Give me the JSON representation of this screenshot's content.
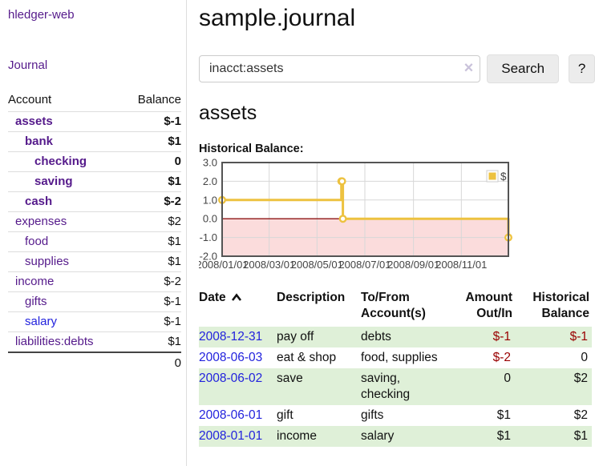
{
  "app": {
    "title": "hledger-web"
  },
  "sidebar": {
    "journal_link": "Journal",
    "table": {
      "headers": {
        "account": "Account",
        "balance": "Balance"
      },
      "rows": [
        {
          "account": "assets",
          "balance": "$-1",
          "indent": 1,
          "bold": true,
          "balance_style": "negative"
        },
        {
          "account": "bank",
          "balance": "$1",
          "indent": 2,
          "bold": true,
          "balance_style": "normal"
        },
        {
          "account": "checking",
          "balance": "0",
          "indent": 3,
          "bold": true,
          "balance_style": "normal"
        },
        {
          "account": "saving",
          "balance": "$1",
          "indent": 3,
          "bold": true,
          "balance_style": "normal"
        },
        {
          "account": "cash",
          "balance": "$-2",
          "indent": 2,
          "bold": true,
          "balance_style": "negative"
        },
        {
          "account": "expenses",
          "balance": "$2",
          "indent": 1,
          "bold": false,
          "balance_style": "normal"
        },
        {
          "account": "food",
          "balance": "$1",
          "indent": 2,
          "bold": false,
          "balance_style": "normal"
        },
        {
          "account": "supplies",
          "balance": "$1",
          "indent": 2,
          "bold": false,
          "balance_style": "normal"
        },
        {
          "account": "income",
          "balance": "$-2",
          "indent": 1,
          "bold": false,
          "balance_style": "muted-negative"
        },
        {
          "account": "gifts",
          "balance": "$-1",
          "indent": 2,
          "bold": false,
          "balance_style": "muted-negative"
        },
        {
          "account": "salary",
          "balance": "$-1",
          "indent": 2,
          "bold": false,
          "balance_style": "muted-negative",
          "link_style": "blue"
        },
        {
          "account": "liabilities:debts",
          "balance": "$1",
          "indent": 1,
          "bold": false,
          "balance_style": "normal"
        }
      ],
      "total": "0"
    }
  },
  "main": {
    "title": "sample.journal",
    "search": {
      "value": "inacct:assets",
      "clear_icon": "×",
      "button_label": "Search",
      "help_label": "?"
    },
    "account_heading": "assets"
  },
  "chart_data": {
    "type": "line",
    "title": "Historical Balance:",
    "step": true,
    "series": [
      {
        "name": "$",
        "color": "#EDC240",
        "points": [
          {
            "date": "2008-01-01",
            "value": 1
          },
          {
            "date": "2008-06-01",
            "value": 2
          },
          {
            "date": "2008-06-02",
            "value": 2
          },
          {
            "date": "2008-06-03",
            "value": 0
          },
          {
            "date": "2008-12-31",
            "value": -1
          }
        ]
      }
    ],
    "x_range": [
      "2008-01-01",
      "2008-12-31"
    ],
    "x_ticks": [
      {
        "date": "2008-01-01",
        "label": "2008/01/01"
      },
      {
        "date": "2008-03-01",
        "label": "2008/03/01"
      },
      {
        "date": "2008-05-01",
        "label": "2008/05/01"
      },
      {
        "date": "2008-07-01",
        "label": "2008/07/01"
      },
      {
        "date": "2008-09-01",
        "label": "2008/09/01"
      },
      {
        "date": "2008-11-01",
        "label": "2008/11/01"
      }
    ],
    "y_ticks": [
      "3.0",
      "2.0",
      "1.0",
      "0.0",
      "-1.0",
      "-2.0"
    ],
    "ylim": [
      -2,
      3
    ],
    "grid": true,
    "legend": {
      "label": "$",
      "position": "top-right"
    },
    "colors": {
      "negative_region": "#fbdcdc",
      "zero_line": "#8e1414",
      "grid": "#d7d7d7",
      "border": "#545454",
      "tick_text": "#444444"
    }
  },
  "register": {
    "headers": [
      {
        "line1": "Date",
        "line2": "",
        "align": "left",
        "sort": "asc"
      },
      {
        "line1": "Description",
        "line2": "",
        "align": "left"
      },
      {
        "line1": "To/From",
        "line2": "Account(s)",
        "align": "left"
      },
      {
        "line1": "Amount",
        "line2": "Out/In",
        "align": "right"
      },
      {
        "line1": "Historical",
        "line2": "Balance",
        "align": "right"
      }
    ],
    "rows": [
      {
        "date": "2008-12-31",
        "description": "pay off",
        "accounts": "debts",
        "amount": "$-1",
        "balance": "$-1",
        "amount_negative": true,
        "balance_negative": true
      },
      {
        "date": "2008-06-03",
        "description": "eat & shop",
        "accounts": "food, supplies",
        "amount": "$-2",
        "balance": "0",
        "amount_negative": true,
        "balance_negative": false
      },
      {
        "date": "2008-06-02",
        "description": "save",
        "accounts": "saving, checking",
        "amount": "0",
        "balance": "$2",
        "amount_negative": false,
        "balance_negative": false
      },
      {
        "date": "2008-06-01",
        "description": "gift",
        "accounts": "gifts",
        "amount": "$1",
        "balance": "$2",
        "amount_negative": false,
        "balance_negative": false
      },
      {
        "date": "2008-01-01",
        "description": "income",
        "accounts": "salary",
        "amount": "$1",
        "balance": "$1",
        "amount_negative": false,
        "balance_negative": false
      }
    ]
  }
}
